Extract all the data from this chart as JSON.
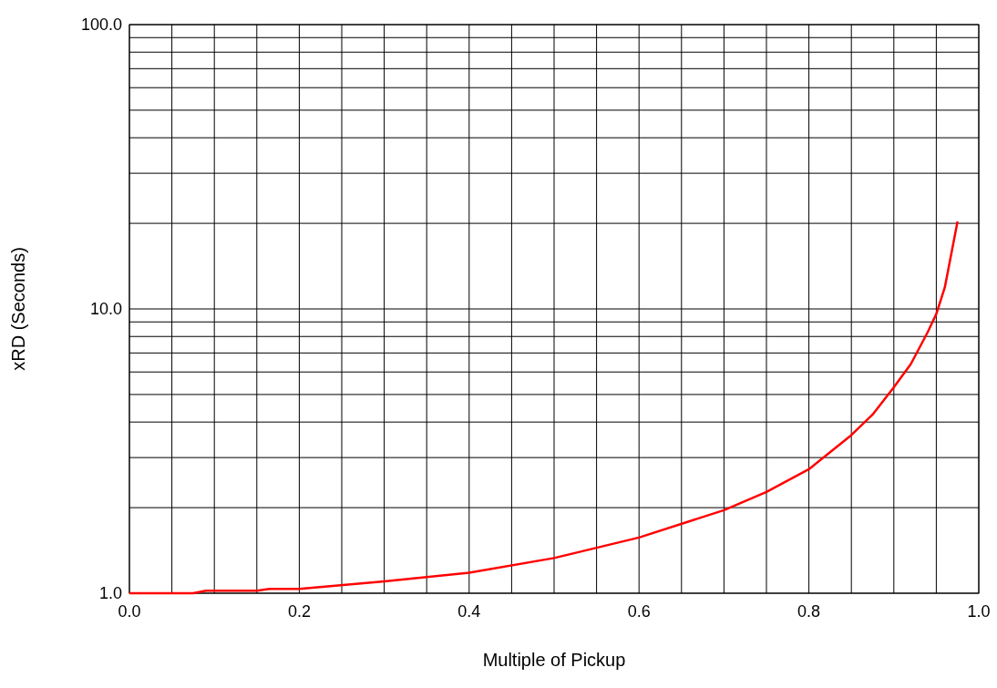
{
  "chart_data": {
    "type": "line",
    "xlabel": "Multiple of Pickup",
    "ylabel": "xRD (Seconds)",
    "log": "y",
    "grid": true,
    "marker": "none",
    "line_style": "solid",
    "xlim": [
      0,
      1
    ],
    "ylim": [
      1,
      100
    ],
    "xticks": [
      {
        "value": 0,
        "label": "0.0"
      },
      {
        "value": 0.05,
        "label": null
      },
      {
        "value": 0.1,
        "label": null
      },
      {
        "value": 0.15,
        "label": null
      },
      {
        "value": 0.2,
        "label": "0.2"
      },
      {
        "value": 0.25,
        "label": null
      },
      {
        "value": 0.3,
        "label": null
      },
      {
        "value": 0.35,
        "label": null
      },
      {
        "value": 0.4,
        "label": "0.4"
      },
      {
        "value": 0.45,
        "label": null
      },
      {
        "value": 0.5,
        "label": null
      },
      {
        "value": 0.55,
        "label": null
      },
      {
        "value": 0.6,
        "label": "0.6"
      },
      {
        "value": 0.65,
        "label": null
      },
      {
        "value": 0.7,
        "label": null
      },
      {
        "value": 0.75,
        "label": null
      },
      {
        "value": 0.8,
        "label": "0.8"
      },
      {
        "value": 0.85,
        "label": null
      },
      {
        "value": 0.9,
        "label": null
      },
      {
        "value": 0.95,
        "label": null
      },
      {
        "value": 1,
        "label": "1.0"
      }
    ],
    "yticks": [
      {
        "value": 1,
        "label": "1.0"
      },
      {
        "value": 2,
        "label": null
      },
      {
        "value": 3,
        "label": null
      },
      {
        "value": 4,
        "label": null
      },
      {
        "value": 5,
        "label": null
      },
      {
        "value": 6,
        "label": null
      },
      {
        "value": 7,
        "label": null
      },
      {
        "value": 8,
        "label": null
      },
      {
        "value": 9,
        "label": null
      },
      {
        "value": 10,
        "label": "10.0"
      },
      {
        "value": 20,
        "label": null
      },
      {
        "value": 30,
        "label": null
      },
      {
        "value": 40,
        "label": null
      },
      {
        "value": 50,
        "label": null
      },
      {
        "value": 60,
        "label": null
      },
      {
        "value": 70,
        "label": null
      },
      {
        "value": 80,
        "label": null
      },
      {
        "value": 90,
        "label": null
      },
      {
        "value": 100,
        "label": "100.0"
      }
    ],
    "x": [
      0,
      0.075,
      0.09,
      0.15,
      0.165,
      0.2,
      0.3,
      0.4,
      0.5,
      0.6,
      0.7,
      0.75,
      0.8,
      0.85,
      0.875,
      0.9,
      0.92,
      0.94,
      0.95,
      0.96,
      0.975
    ],
    "series": [
      {
        "color": "#ff0000",
        "values": [
          1.0,
          1.0,
          1.02,
          1.02,
          1.035,
          1.035,
          1.1,
          1.18,
          1.33,
          1.57,
          1.96,
          2.27,
          2.73,
          3.6,
          4.25,
          5.3,
          6.4,
          8.3,
          9.6,
          11.9,
          20.3
        ]
      }
    ]
  }
}
